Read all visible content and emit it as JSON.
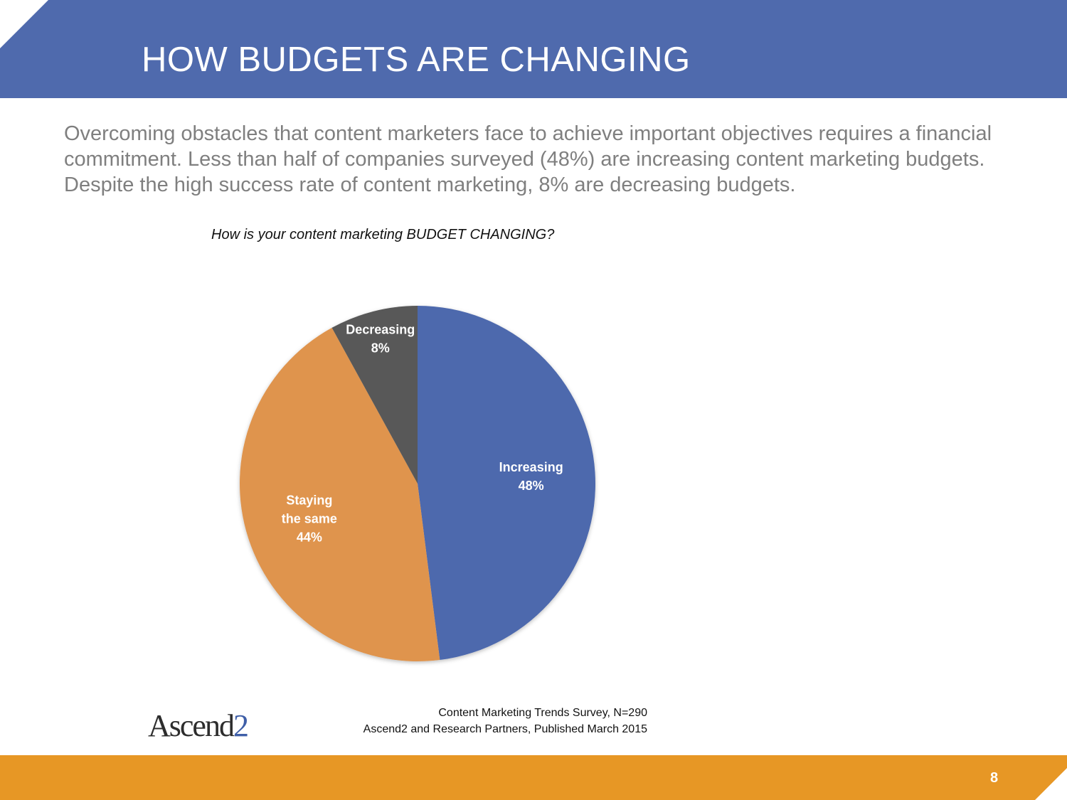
{
  "slide": {
    "title": "HOW BUDGETS ARE CHANGING",
    "intro": "Overcoming obstacles that content marketers face to achieve important objectives requires a financial commitment. Less than half of companies surveyed (48%) are increasing content marketing budgets. Despite the high success rate of content marketing, 8% are decreasing budgets.",
    "question": "How is your content marketing BUDGET CHANGING?",
    "source_line1": "Content Marketing Trends Survey, N=290",
    "source_line2": "Ascend2 and Research Partners, Published March 2015",
    "page_number": "8",
    "logo_text": "Ascend",
    "logo_digit": "2"
  },
  "colors": {
    "header": "#4f6aad",
    "footer": "#e79725",
    "increasing": "#4e69ad",
    "staying": "#df944e",
    "decreasing": "#595959"
  },
  "chart_data": {
    "type": "pie",
    "title": "How is your content marketing BUDGET CHANGING?",
    "slices": [
      {
        "label": "Increasing",
        "value": 48,
        "display": "48%",
        "color": "#4e69ad"
      },
      {
        "label": "Staying the same",
        "value": 44,
        "display": "44%",
        "color": "#df944e"
      },
      {
        "label": "Decreasing",
        "value": 8,
        "display": "8%",
        "color": "#595959"
      }
    ],
    "start_angle": "12 o'clock",
    "direction": "clockwise",
    "legend": "none (labels on slices)"
  }
}
